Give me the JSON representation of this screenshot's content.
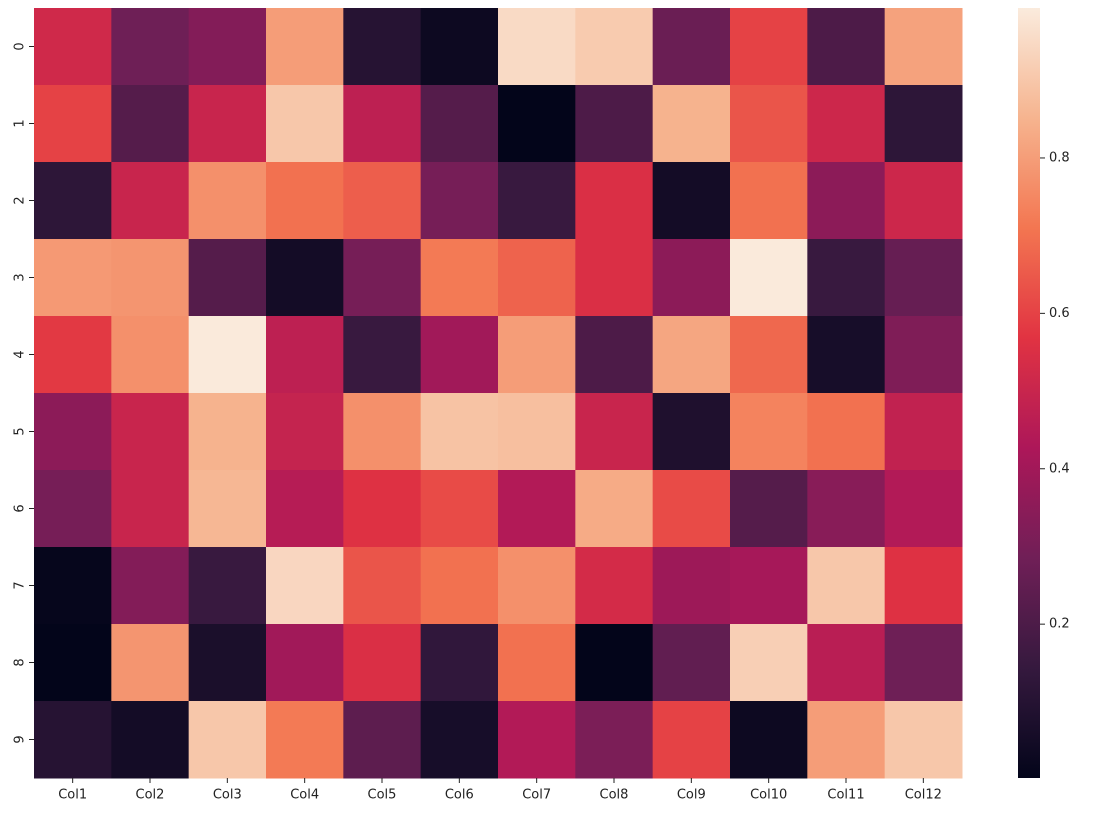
{
  "chart_data": {
    "type": "heatmap",
    "x_categories": [
      "Col1",
      "Col2",
      "Col3",
      "Col4",
      "Col5",
      "Col6",
      "Col7",
      "Col8",
      "Col9",
      "Col10",
      "Col11",
      "Col12"
    ],
    "y_categories": [
      "0",
      "1",
      "2",
      "3",
      "4",
      "5",
      "6",
      "7",
      "8",
      "9"
    ],
    "values": [
      [
        0.52,
        0.28,
        0.33,
        0.8,
        0.1,
        0.03,
        0.95,
        0.91,
        0.27,
        0.6,
        0.2,
        0.81
      ],
      [
        0.6,
        0.22,
        0.5,
        0.9,
        0.47,
        0.22,
        0.0,
        0.2,
        0.85,
        0.64,
        0.51,
        0.12
      ],
      [
        0.12,
        0.5,
        0.77,
        0.7,
        0.66,
        0.3,
        0.15,
        0.55,
        0.05,
        0.7,
        0.35,
        0.51
      ],
      [
        0.79,
        0.78,
        0.22,
        0.05,
        0.3,
        0.72,
        0.67,
        0.55,
        0.35,
        0.99,
        0.15,
        0.26
      ],
      [
        0.58,
        0.77,
        0.99,
        0.47,
        0.15,
        0.4,
        0.8,
        0.2,
        0.82,
        0.68,
        0.06,
        0.32
      ],
      [
        0.35,
        0.5,
        0.85,
        0.49,
        0.77,
        0.89,
        0.88,
        0.5,
        0.08,
        0.74,
        0.7,
        0.48
      ],
      [
        0.3,
        0.5,
        0.86,
        0.45,
        0.56,
        0.62,
        0.44,
        0.83,
        0.62,
        0.22,
        0.34,
        0.44
      ],
      [
        0.01,
        0.33,
        0.15,
        0.94,
        0.64,
        0.7,
        0.77,
        0.53,
        0.39,
        0.41,
        0.9,
        0.56
      ],
      [
        0.002,
        0.78,
        0.07,
        0.4,
        0.55,
        0.13,
        0.7,
        0.002,
        0.25,
        0.92,
        0.46,
        0.28
      ],
      [
        0.1,
        0.05,
        0.9,
        0.72,
        0.24,
        0.06,
        0.44,
        0.31,
        0.6,
        0.03,
        0.8,
        0.9
      ]
    ],
    "colormap": "rocket",
    "clim": [
      0.002,
      0.993
    ],
    "cticks": [
      0.2,
      0.4,
      0.6,
      0.8
    ]
  }
}
